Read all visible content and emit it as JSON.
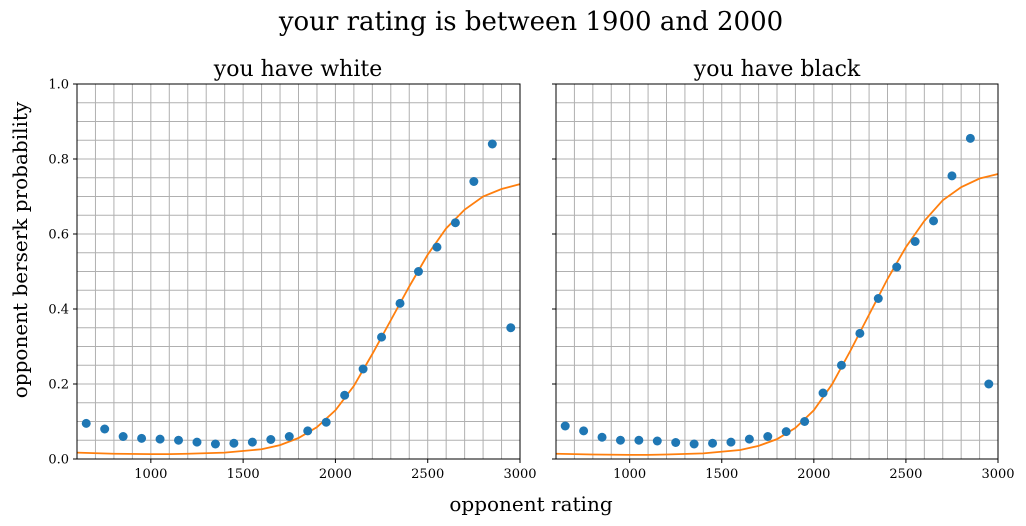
{
  "figure": {
    "suptitle": "your rating is between 1900 and 2000",
    "xlabel": "opponent rating",
    "ylabel": "opponent berserk probability"
  },
  "chart_data": [
    {
      "type": "scatter",
      "title": "you have white",
      "xlim": [
        600,
        3000
      ],
      "ylim": [
        0,
        1.0
      ],
      "xticks": [
        1000,
        1500,
        2000,
        2500,
        3000
      ],
      "yticks": [
        0.0,
        0.2,
        0.4,
        0.6,
        0.8,
        1.0
      ],
      "grid": true,
      "grid_step": {
        "x": 100,
        "y": 0.05
      },
      "series": [
        {
          "kind": "points",
          "color": "#1f77b4",
          "x": [
            650,
            750,
            850,
            950,
            1050,
            1150,
            1250,
            1350,
            1450,
            1550,
            1650,
            1750,
            1850,
            1950,
            2050,
            2150,
            2250,
            2350,
            2450,
            2550,
            2650,
            2750,
            2850,
            2950
          ],
          "y": [
            0.095,
            0.08,
            0.06,
            0.055,
            0.053,
            0.05,
            0.045,
            0.04,
            0.042,
            0.045,
            0.052,
            0.06,
            0.075,
            0.098,
            0.17,
            0.24,
            0.325,
            0.415,
            0.5,
            0.565,
            0.63,
            0.74,
            0.84,
            0.35
          ]
        },
        {
          "kind": "line",
          "color": "#ff7f0e",
          "x": [
            600,
            800,
            1000,
            1100,
            1200,
            1400,
            1600,
            1700,
            1800,
            1900,
            2000,
            2100,
            2200,
            2300,
            2400,
            2500,
            2600,
            2700,
            2800,
            2900,
            3000
          ],
          "y": [
            0.017,
            0.014,
            0.013,
            0.013,
            0.014,
            0.017,
            0.026,
            0.037,
            0.056,
            0.085,
            0.13,
            0.195,
            0.28,
            0.37,
            0.46,
            0.545,
            0.615,
            0.665,
            0.7,
            0.72,
            0.733
          ]
        }
      ]
    },
    {
      "type": "scatter",
      "title": "you have black",
      "xlim": [
        600,
        3000
      ],
      "ylim": [
        0,
        1.0
      ],
      "xticks": [
        1000,
        1500,
        2000,
        2500,
        3000
      ],
      "yticks": [
        0.0,
        0.2,
        0.4,
        0.6,
        0.8,
        1.0
      ],
      "grid": true,
      "grid_step": {
        "x": 100,
        "y": 0.05
      },
      "series": [
        {
          "kind": "points",
          "color": "#1f77b4",
          "x": [
            650,
            750,
            850,
            950,
            1050,
            1150,
            1250,
            1350,
            1450,
            1550,
            1650,
            1750,
            1850,
            1950,
            2050,
            2150,
            2250,
            2350,
            2450,
            2550,
            2650,
            2750,
            2850,
            2950
          ],
          "y": [
            0.088,
            0.075,
            0.058,
            0.05,
            0.05,
            0.048,
            0.044,
            0.04,
            0.042,
            0.045,
            0.053,
            0.06,
            0.073,
            0.1,
            0.176,
            0.25,
            0.335,
            0.428,
            0.512,
            0.58,
            0.635,
            0.755,
            0.855,
            0.2
          ]
        },
        {
          "kind": "line",
          "color": "#ff7f0e",
          "x": [
            600,
            800,
            1000,
            1100,
            1200,
            1400,
            1600,
            1700,
            1800,
            1900,
            2000,
            2100,
            2200,
            2300,
            2400,
            2500,
            2600,
            2700,
            2800,
            2900,
            3000
          ],
          "y": [
            0.014,
            0.012,
            0.011,
            0.011,
            0.012,
            0.015,
            0.024,
            0.035,
            0.053,
            0.083,
            0.13,
            0.2,
            0.29,
            0.385,
            0.48,
            0.565,
            0.635,
            0.69,
            0.725,
            0.748,
            0.76
          ]
        }
      ]
    }
  ]
}
